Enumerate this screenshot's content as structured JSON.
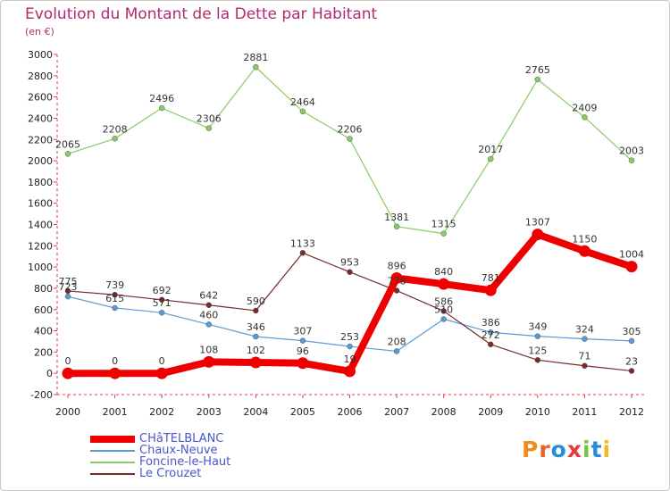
{
  "header": {
    "title": "Evolution du Montant de la Dette par Habitant",
    "unit": "(en €)"
  },
  "logo": {
    "text": "Proxiti",
    "colors": [
      "#f28c1d",
      "#e8632a",
      "#2a8cd6",
      "#e83a3a",
      "#7cc242",
      "#2a8cd6",
      "#f2b81d"
    ]
  },
  "chart_data": {
    "type": "line",
    "title": "Evolution du Montant de la Dette par Habitant",
    "subtitle": "(en €)",
    "xlabel": "",
    "ylabel": "",
    "categories": [
      "2000",
      "2001",
      "2002",
      "2003",
      "2004",
      "2005",
      "2006",
      "2007",
      "2008",
      "2009",
      "2010",
      "2011",
      "2012"
    ],
    "ylim": [
      -200,
      3000
    ],
    "ytick_step": 200,
    "grid": false,
    "legend_position": "bottom-left",
    "series": [
      {
        "name": "CHâTELBLANC",
        "color": "#ee0000",
        "values": [
          0,
          0,
          0,
          108,
          102,
          96,
          19,
          896,
          840,
          781,
          1307,
          1150,
          1004
        ],
        "bold": true
      },
      {
        "name": "Chaux-Neuve",
        "color": "#5b9bd5",
        "values": [
          723,
          615,
          571,
          460,
          346,
          307,
          253,
          208,
          510,
          386,
          349,
          324,
          305
        ],
        "bold": false
      },
      {
        "name": "Foncine-le-Haut",
        "color": "#88cc66",
        "values": [
          2065,
          2208,
          2496,
          2306,
          2881,
          2464,
          2206,
          1381,
          1315,
          2017,
          2765,
          2409,
          2003
        ],
        "bold": false
      },
      {
        "name": "Le Crouzet",
        "color": "#7a2a2a",
        "values": [
          775,
          739,
          692,
          642,
          590,
          1133,
          953,
          778,
          586,
          272,
          125,
          71,
          23
        ],
        "bold": false
      }
    ]
  }
}
